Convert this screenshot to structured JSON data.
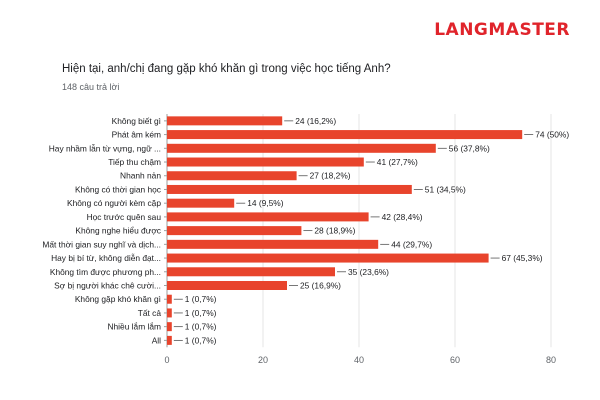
{
  "brand": {
    "logo_text": "LANGMASTER",
    "color": "#e0242b"
  },
  "question": "Hiện tại, anh/chị đang gặp khó khăn gì trong việc học tiếng Anh?",
  "responses_count": "148 câu trả lời",
  "colors": {
    "bar": "#e8442c",
    "grid": "#e4e4e4",
    "axis": "#9e9e9e"
  },
  "chart_data": {
    "type": "bar",
    "orientation": "horizontal",
    "categories": [
      "Không biết gì",
      "Phát âm kém",
      "Hay nhầm lẫn từ vựng, ngữ ...",
      "Tiếp thu chậm",
      "Nhanh nản",
      "Không có thời gian học",
      "Không có người kèm cặp",
      "Học trước quên sau",
      "Không nghe hiểu được",
      "Mất thời gian suy nghĩ và dịch...",
      "Hay bị bí từ, không diễn đạt...",
      "Không tìm được phương ph...",
      "Sợ bị người khác chê cười...",
      "Không gặp khó khăn gì",
      "Tất cả",
      "Nhiều lắm lắm",
      "All"
    ],
    "values": [
      24,
      74,
      56,
      41,
      27,
      51,
      14,
      42,
      28,
      44,
      67,
      35,
      25,
      1,
      1,
      1,
      1
    ],
    "data_labels": [
      "24 (16,2%)",
      "74 (50%)",
      "56 (37,8%)",
      "41 (27,7%)",
      "27 (18,2%)",
      "51 (34,5%)",
      "14 (9,5%)",
      "42 (28,4%)",
      "28 (18,9%)",
      "44 (29,7%)",
      "67 (45,3%)",
      "35 (23,6%)",
      "25 (16,9%)",
      "1 (0,7%)",
      "1 (0,7%)",
      "1 (0,7%)",
      "1 (0,7%)"
    ],
    "xlim": [
      0,
      80
    ],
    "xticks": [
      "0",
      "20",
      "40",
      "60",
      "80"
    ],
    "grid": true
  }
}
